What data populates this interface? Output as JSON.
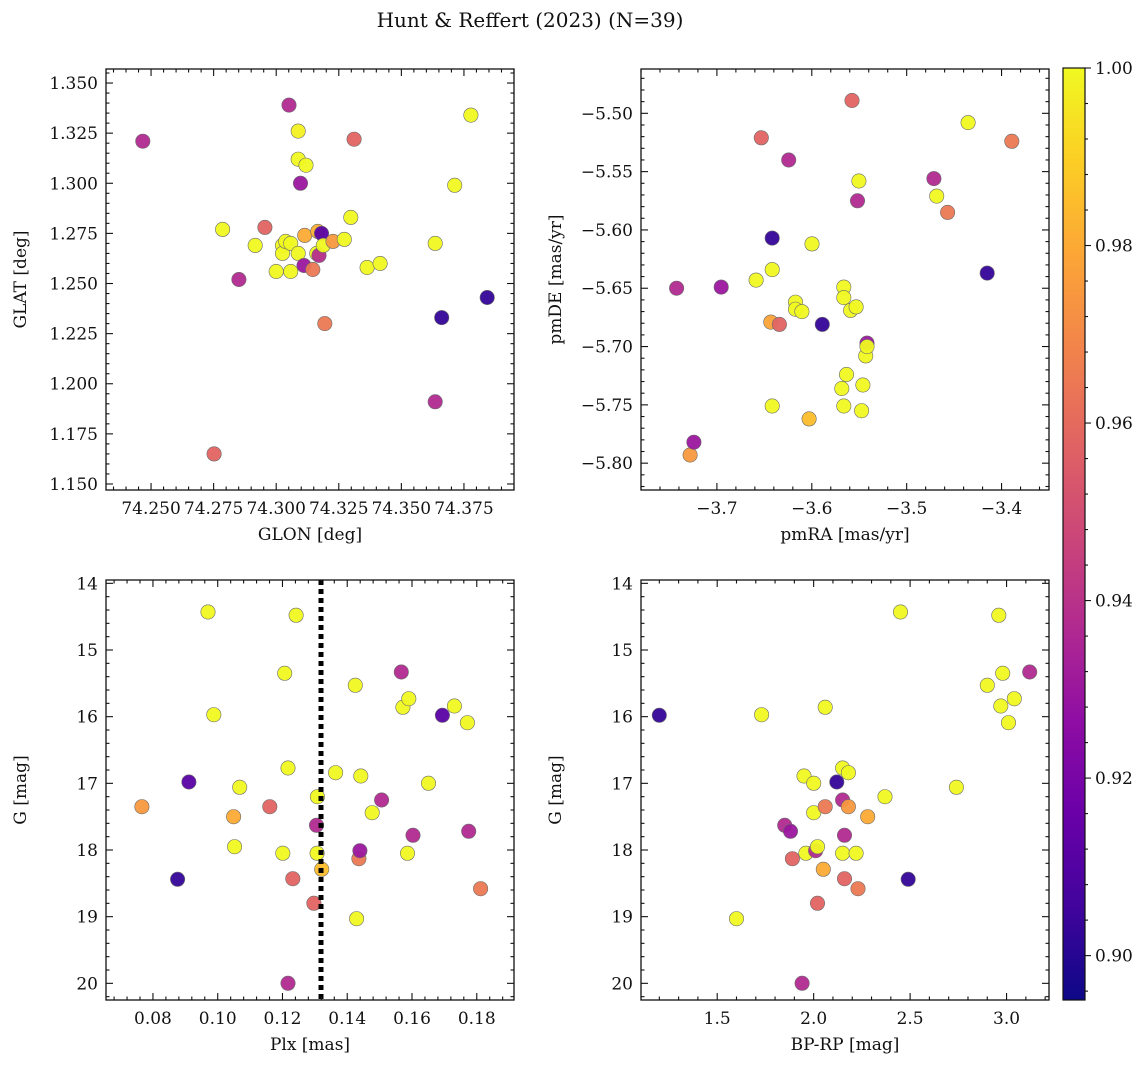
{
  "figure": {
    "title": "Hunt & Reffert (2023) (N=39)"
  },
  "colorbar": {
    "min": 0.895,
    "max": 1.0,
    "ticks": [
      0.9,
      0.92,
      0.94,
      0.96,
      0.98,
      1.0
    ],
    "ticklabels": [
      "0.90",
      "0.92",
      "0.94",
      "0.96",
      "0.98",
      "1.00"
    ],
    "colormap": "plasma"
  },
  "chart_data": [
    {
      "type": "scatter",
      "title": "",
      "xlabel": "GLON [deg]",
      "ylabel": "GLAT [deg]",
      "xlim": [
        74.232,
        74.395
      ],
      "ylim": [
        1.147,
        1.357
      ],
      "xticks": [
        74.25,
        74.275,
        74.3,
        74.325,
        74.35,
        74.375
      ],
      "xticklabels": [
        "74.250",
        "74.275",
        "74.300",
        "74.325",
        "74.350",
        "74.375"
      ],
      "yticks": [
        1.15,
        1.175,
        1.2,
        1.225,
        1.25,
        1.275,
        1.3,
        1.325,
        1.35
      ],
      "yticklabels": [
        "1.150",
        "1.175",
        "1.200",
        "1.225",
        "1.250",
        "1.275",
        "1.300",
        "1.325",
        "1.350"
      ],
      "points": [
        {
          "x": 74.2467,
          "y": 1.321,
          "c": 0.937
        },
        {
          "x": 74.2752,
          "y": 1.165,
          "c": 0.958
        },
        {
          "x": 74.2786,
          "y": 1.277,
          "c": 1.0
        },
        {
          "x": 74.2851,
          "y": 1.252,
          "c": 0.937
        },
        {
          "x": 74.2916,
          "y": 1.269,
          "c": 1.0
        },
        {
          "x": 74.2955,
          "y": 1.278,
          "c": 0.958
        },
        {
          "x": 74.3,
          "y": 1.256,
          "c": 1.0
        },
        {
          "x": 74.3025,
          "y": 1.269,
          "c": 1.0
        },
        {
          "x": 74.3025,
          "y": 1.265,
          "c": 1.0
        },
        {
          "x": 74.3038,
          "y": 1.271,
          "c": 1.0
        },
        {
          "x": 74.3051,
          "y": 1.339,
          "c": 0.937
        },
        {
          "x": 74.3058,
          "y": 1.27,
          "c": 1.0
        },
        {
          "x": 74.3058,
          "y": 1.256,
          "c": 1.0
        },
        {
          "x": 74.3088,
          "y": 1.326,
          "c": 0.998
        },
        {
          "x": 74.3088,
          "y": 1.312,
          "c": 1.0
        },
        {
          "x": 74.3088,
          "y": 1.265,
          "c": 1.0
        },
        {
          "x": 74.3097,
          "y": 1.3,
          "c": 0.93
        },
        {
          "x": 74.3111,
          "y": 1.259,
          "c": 0.93
        },
        {
          "x": 74.3114,
          "y": 1.274,
          "c": 0.98
        },
        {
          "x": 74.3119,
          "y": 1.309,
          "c": 1.0
        },
        {
          "x": 74.3146,
          "y": 1.257,
          "c": 0.965
        },
        {
          "x": 74.3162,
          "y": 1.265,
          "c": 1.0
        },
        {
          "x": 74.3166,
          "y": 1.276,
          "c": 0.982
        },
        {
          "x": 74.3171,
          "y": 1.264,
          "c": 0.938
        },
        {
          "x": 74.3181,
          "y": 1.275,
          "c": 0.912
        },
        {
          "x": 74.3188,
          "y": 1.269,
          "c": 1.0
        },
        {
          "x": 74.3194,
          "y": 1.23,
          "c": 0.965
        },
        {
          "x": 74.3227,
          "y": 1.271,
          "c": 0.975
        },
        {
          "x": 74.3272,
          "y": 1.272,
          "c": 1.0
        },
        {
          "x": 74.3298,
          "y": 1.283,
          "c": 1.0
        },
        {
          "x": 74.3311,
          "y": 1.322,
          "c": 0.958
        },
        {
          "x": 74.3363,
          "y": 1.258,
          "c": 1.0
        },
        {
          "x": 74.3415,
          "y": 1.26,
          "c": 1.0
        },
        {
          "x": 74.3635,
          "y": 1.27,
          "c": 1.0
        },
        {
          "x": 74.3635,
          "y": 1.191,
          "c": 0.937
        },
        {
          "x": 74.3661,
          "y": 1.233,
          "c": 0.903
        },
        {
          "x": 74.3713,
          "y": 1.299,
          "c": 1.0
        },
        {
          "x": 74.3778,
          "y": 1.334,
          "c": 1.0
        },
        {
          "x": 74.3843,
          "y": 1.243,
          "c": 0.903
        }
      ]
    },
    {
      "type": "scatter",
      "title": "",
      "xlabel": "pmRA [mas/yr]",
      "ylabel": "pmDE [mas/yr]",
      "xlim": [
        -3.78,
        -3.35
      ],
      "ylim": [
        -5.823,
        -5.462
      ],
      "xticks": [
        -3.7,
        -3.6,
        -3.5,
        -3.4
      ],
      "xticklabels": [
        "−3.7",
        "−3.6",
        "−3.5",
        "−3.4"
      ],
      "yticks": [
        -5.8,
        -5.75,
        -5.7,
        -5.65,
        -5.6,
        -5.55,
        -5.5
      ],
      "yticklabels": [
        "−5.80",
        "−5.75",
        "−5.70",
        "−5.65",
        "−5.60",
        "−5.55",
        "−5.50"
      ],
      "points": [
        {
          "x": -3.7425,
          "y": -5.65,
          "c": 0.937
        },
        {
          "x": -3.7283,
          "y": -5.793,
          "c": 0.975
        },
        {
          "x": -3.7243,
          "y": -5.782,
          "c": 0.93
        },
        {
          "x": -3.6955,
          "y": -5.649,
          "c": 0.93
        },
        {
          "x": -3.6587,
          "y": -5.643,
          "c": 1.0
        },
        {
          "x": -3.6532,
          "y": -5.521,
          "c": 0.958
        },
        {
          "x": -3.6432,
          "y": -5.679,
          "c": 0.978
        },
        {
          "x": -3.6417,
          "y": -5.607,
          "c": 0.903
        },
        {
          "x": -3.6417,
          "y": -5.751,
          "c": 1.0
        },
        {
          "x": -3.6417,
          "y": -5.634,
          "c": 1.0
        },
        {
          "x": -3.6341,
          "y": -5.681,
          "c": 0.958
        },
        {
          "x": -3.6243,
          "y": -5.54,
          "c": 0.937
        },
        {
          "x": -3.6172,
          "y": -5.662,
          "c": 1.0
        },
        {
          "x": -3.6172,
          "y": -5.668,
          "c": 1.0
        },
        {
          "x": -3.6104,
          "y": -5.67,
          "c": 1.0
        },
        {
          "x": -3.6028,
          "y": -5.762,
          "c": 0.985
        },
        {
          "x": -3.5998,
          "y": -5.612,
          "c": 1.0
        },
        {
          "x": -3.5889,
          "y": -5.681,
          "c": 0.903
        },
        {
          "x": -3.5684,
          "y": -5.736,
          "c": 1.0
        },
        {
          "x": -3.5663,
          "y": -5.649,
          "c": 1.0
        },
        {
          "x": -3.5663,
          "y": -5.658,
          "c": 1.0
        },
        {
          "x": -3.5663,
          "y": -5.751,
          "c": 1.0
        },
        {
          "x": -3.5634,
          "y": -5.724,
          "c": 1.0
        },
        {
          "x": -3.5591,
          "y": -5.669,
          "c": 1.0
        },
        {
          "x": -3.5576,
          "y": -5.489,
          "c": 0.958
        },
        {
          "x": -3.5533,
          "y": -5.666,
          "c": 1.0
        },
        {
          "x": -3.5518,
          "y": -5.575,
          "c": 0.937
        },
        {
          "x": -3.5504,
          "y": -5.558,
          "c": 1.0
        },
        {
          "x": -3.5475,
          "y": -5.755,
          "c": 1.0
        },
        {
          "x": -3.5461,
          "y": -5.733,
          "c": 1.0
        },
        {
          "x": -3.5432,
          "y": -5.708,
          "c": 1.0
        },
        {
          "x": -3.5418,
          "y": -5.697,
          "c": 0.93
        },
        {
          "x": -3.5418,
          "y": -5.7,
          "c": 1.0
        },
        {
          "x": -3.4713,
          "y": -5.556,
          "c": 0.937
        },
        {
          "x": -3.4684,
          "y": -5.571,
          "c": 1.0
        },
        {
          "x": -3.4569,
          "y": -5.585,
          "c": 0.965
        },
        {
          "x": -3.4353,
          "y": -5.508,
          "c": 1.0
        },
        {
          "x": -3.4151,
          "y": -5.637,
          "c": 0.903
        },
        {
          "x": -3.3892,
          "y": -5.524,
          "c": 0.965
        }
      ]
    },
    {
      "type": "scatter",
      "title": "",
      "xlabel": "Plx [mas]",
      "ylabel": "G [mag]",
      "xlim": [
        0.0655,
        0.1915
      ],
      "ylim": [
        20.25,
        13.95
      ],
      "xticks": [
        0.08,
        0.1,
        0.12,
        0.14,
        0.16,
        0.18
      ],
      "xticklabels": [
        "0.08",
        "0.10",
        "0.12",
        "0.14",
        "0.16",
        "0.18"
      ],
      "yticks": [
        14,
        15,
        16,
        17,
        18,
        19,
        20
      ],
      "yticklabels": [
        "14",
        "15",
        "16",
        "17",
        "18",
        "19",
        "20"
      ],
      "vline": {
        "x": 0.1319,
        "style": "dotted",
        "color": "#000000"
      },
      "points": [
        {
          "x": 0.0766,
          "y": 17.35,
          "c": 0.975
        },
        {
          "x": 0.0876,
          "y": 18.44,
          "c": 0.903
        },
        {
          "x": 0.0911,
          "y": 16.98,
          "c": 0.912
        },
        {
          "x": 0.097,
          "y": 14.43,
          "c": 1.0
        },
        {
          "x": 0.0988,
          "y": 15.97,
          "c": 1.0
        },
        {
          "x": 0.1049,
          "y": 17.5,
          "c": 0.98
        },
        {
          "x": 0.1052,
          "y": 17.95,
          "c": 1.0
        },
        {
          "x": 0.1068,
          "y": 17.06,
          "c": 1.0
        },
        {
          "x": 0.1161,
          "y": 17.35,
          "c": 0.958
        },
        {
          "x": 0.1201,
          "y": 18.05,
          "c": 1.0
        },
        {
          "x": 0.1207,
          "y": 15.35,
          "c": 1.0
        },
        {
          "x": 0.1217,
          "y": 20.0,
          "c": 0.937
        },
        {
          "x": 0.1217,
          "y": 16.77,
          "c": 1.0
        },
        {
          "x": 0.1232,
          "y": 18.43,
          "c": 0.958
        },
        {
          "x": 0.1242,
          "y": 14.48,
          "c": 1.0
        },
        {
          "x": 0.1297,
          "y": 18.8,
          "c": 0.958
        },
        {
          "x": 0.1305,
          "y": 17.63,
          "c": 0.937
        },
        {
          "x": 0.1307,
          "y": 18.05,
          "c": 1.0
        },
        {
          "x": 0.1308,
          "y": 17.2,
          "c": 1.0
        },
        {
          "x": 0.1321,
          "y": 18.29,
          "c": 0.985
        },
        {
          "x": 0.1364,
          "y": 16.84,
          "c": 1.0
        },
        {
          "x": 0.1425,
          "y": 15.53,
          "c": 1.0
        },
        {
          "x": 0.1429,
          "y": 19.03,
          "c": 1.0
        },
        {
          "x": 0.1436,
          "y": 18.13,
          "c": 0.965
        },
        {
          "x": 0.1439,
          "y": 18.01,
          "c": 0.93
        },
        {
          "x": 0.1442,
          "y": 16.89,
          "c": 1.0
        },
        {
          "x": 0.1477,
          "y": 17.44,
          "c": 1.0
        },
        {
          "x": 0.1506,
          "y": 17.25,
          "c": 0.937
        },
        {
          "x": 0.1567,
          "y": 15.33,
          "c": 0.937
        },
        {
          "x": 0.1572,
          "y": 15.86,
          "c": 1.0
        },
        {
          "x": 0.1586,
          "y": 18.05,
          "c": 1.0
        },
        {
          "x": 0.159,
          "y": 15.73,
          "c": 1.0
        },
        {
          "x": 0.1603,
          "y": 17.78,
          "c": 0.937
        },
        {
          "x": 0.1651,
          "y": 17.0,
          "c": 1.0
        },
        {
          "x": 0.1694,
          "y": 15.98,
          "c": 0.912
        },
        {
          "x": 0.1731,
          "y": 15.84,
          "c": 1.0
        },
        {
          "x": 0.1771,
          "y": 16.09,
          "c": 1.0
        },
        {
          "x": 0.1775,
          "y": 17.72,
          "c": 0.937
        },
        {
          "x": 0.1812,
          "y": 18.58,
          "c": 0.965
        }
      ]
    },
    {
      "type": "scatter",
      "title": "",
      "xlabel": "BP-RP [mag]",
      "ylabel": "G [mag]",
      "xlim": [
        1.105,
        3.22
      ],
      "ylim": [
        20.25,
        13.95
      ],
      "xticks": [
        1.5,
        2.0,
        2.5,
        3.0
      ],
      "xticklabels": [
        "1.5",
        "2.0",
        "2.5",
        "3.0"
      ],
      "yticks": [
        14,
        15,
        16,
        17,
        18,
        19,
        20
      ],
      "yticklabels": [
        "14",
        "15",
        "16",
        "17",
        "18",
        "19",
        "20"
      ],
      "points": [
        {
          "x": 1.2,
          "y": 15.98,
          "c": 0.903
        },
        {
          "x": 1.6,
          "y": 19.03,
          "c": 1.0
        },
        {
          "x": 1.73,
          "y": 15.97,
          "c": 1.0
        },
        {
          "x": 1.85,
          "y": 17.63,
          "c": 0.937
        },
        {
          "x": 1.88,
          "y": 17.72,
          "c": 0.93
        },
        {
          "x": 1.89,
          "y": 18.13,
          "c": 0.958
        },
        {
          "x": 1.94,
          "y": 20.0,
          "c": 0.937
        },
        {
          "x": 1.95,
          "y": 16.89,
          "c": 1.0
        },
        {
          "x": 1.96,
          "y": 18.05,
          "c": 1.0
        },
        {
          "x": 2.0,
          "y": 17.0,
          "c": 1.0
        },
        {
          "x": 2.0,
          "y": 17.44,
          "c": 1.0
        },
        {
          "x": 2.01,
          "y": 18.01,
          "c": 0.937
        },
        {
          "x": 2.02,
          "y": 18.8,
          "c": 0.958
        },
        {
          "x": 2.02,
          "y": 17.95,
          "c": 1.0
        },
        {
          "x": 2.05,
          "y": 18.29,
          "c": 0.98
        },
        {
          "x": 2.06,
          "y": 17.35,
          "c": 0.965
        },
        {
          "x": 2.06,
          "y": 15.86,
          "c": 1.0
        },
        {
          "x": 2.12,
          "y": 16.98,
          "c": 0.903
        },
        {
          "x": 2.15,
          "y": 17.25,
          "c": 0.937
        },
        {
          "x": 2.15,
          "y": 16.77,
          "c": 1.0
        },
        {
          "x": 2.15,
          "y": 18.05,
          "c": 1.0
        },
        {
          "x": 2.16,
          "y": 18.43,
          "c": 0.958
        },
        {
          "x": 2.16,
          "y": 17.78,
          "c": 0.937
        },
        {
          "x": 2.18,
          "y": 17.35,
          "c": 0.975
        },
        {
          "x": 2.18,
          "y": 16.84,
          "c": 1.0
        },
        {
          "x": 2.22,
          "y": 18.05,
          "c": 1.0
        },
        {
          "x": 2.23,
          "y": 18.58,
          "c": 0.965
        },
        {
          "x": 2.28,
          "y": 17.5,
          "c": 0.98
        },
        {
          "x": 2.37,
          "y": 17.2,
          "c": 1.0
        },
        {
          "x": 2.45,
          "y": 14.43,
          "c": 1.0
        },
        {
          "x": 2.49,
          "y": 18.44,
          "c": 0.903
        },
        {
          "x": 2.74,
          "y": 17.06,
          "c": 1.0
        },
        {
          "x": 2.9,
          "y": 15.53,
          "c": 1.0
        },
        {
          "x": 2.96,
          "y": 14.48,
          "c": 1.0
        },
        {
          "x": 2.97,
          "y": 15.84,
          "c": 1.0
        },
        {
          "x": 2.98,
          "y": 15.35,
          "c": 1.0
        },
        {
          "x": 3.01,
          "y": 16.09,
          "c": 1.0
        },
        {
          "x": 3.04,
          "y": 15.73,
          "c": 1.0
        },
        {
          "x": 3.12,
          "y": 15.33,
          "c": 0.937
        }
      ]
    }
  ]
}
